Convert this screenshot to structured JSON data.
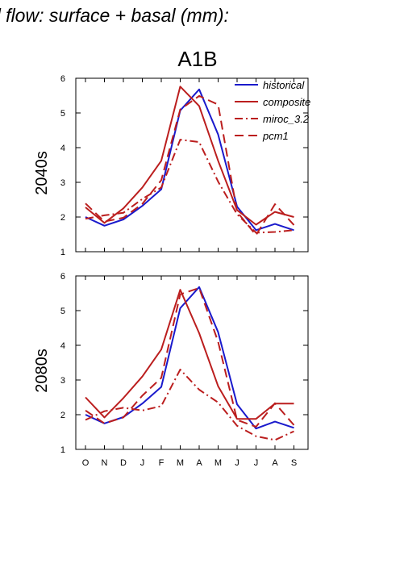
{
  "title": "d flow: surface + basal (mm):",
  "chart_data": {
    "type": "line",
    "scenario": "A1B",
    "categories": [
      "O",
      "N",
      "D",
      "J",
      "F",
      "M",
      "A",
      "M",
      "J",
      "J",
      "A",
      "S"
    ],
    "ylim": [
      1,
      6
    ],
    "yticks": [
      1,
      2,
      3,
      4,
      5,
      6
    ],
    "legend_position": "top-right",
    "legend": [
      {
        "name": "historical",
        "color": "#1a1acc",
        "dash": "solid"
      },
      {
        "name": "composite",
        "color": "#bb1e1e",
        "dash": "solid"
      },
      {
        "name": "miroc_3.2",
        "color": "#bb1e1e",
        "dash": "dashdot"
      },
      {
        "name": "pcm1",
        "color": "#bb1e1e",
        "dash": "dash"
      }
    ],
    "panels": [
      {
        "ylabel": "2040s",
        "show_legend": true,
        "series": [
          {
            "name": "historical",
            "values": [
              2.0,
              1.75,
              1.93,
              2.32,
              2.8,
              5.07,
              5.68,
              4.38,
              2.3,
              1.62,
              1.8,
              1.62
            ]
          },
          {
            "name": "composite",
            "values": [
              2.28,
              1.83,
              2.25,
              2.85,
              3.62,
              5.76,
              5.2,
              3.62,
              2.2,
              1.78,
              2.15,
              2.0
            ]
          },
          {
            "name": "miroc_3.2",
            "values": [
              1.95,
              2.05,
              2.12,
              2.52,
              2.85,
              4.23,
              4.16,
              3.02,
              2.08,
              1.55,
              1.57,
              1.62
            ]
          },
          {
            "name": "pcm1",
            "values": [
              2.39,
              1.87,
              1.98,
              2.38,
              3.06,
              5.1,
              5.49,
              5.24,
              2.15,
              1.48,
              2.37,
              1.77
            ]
          }
        ]
      },
      {
        "ylabel": "2080s",
        "show_legend": false,
        "series": [
          {
            "name": "historical",
            "values": [
              2.0,
              1.75,
              1.93,
              2.32,
              2.8,
              5.07,
              5.68,
              4.38,
              2.3,
              1.6,
              1.8,
              1.62
            ]
          },
          {
            "name": "composite",
            "values": [
              2.5,
              1.92,
              2.48,
              3.1,
              3.88,
              5.6,
              4.35,
              2.82,
              1.88,
              1.88,
              2.32,
              2.32
            ]
          },
          {
            "name": "miroc_3.2",
            "values": [
              1.85,
              2.1,
              2.2,
              2.12,
              2.25,
              3.3,
              2.72,
              2.35,
              1.68,
              1.38,
              1.27,
              1.52
            ]
          },
          {
            "name": "pcm1",
            "values": [
              2.12,
              1.75,
              1.92,
              2.55,
              3.06,
              5.47,
              5.65,
              4.1,
              1.85,
              1.65,
              2.33,
              1.7
            ]
          }
        ]
      }
    ]
  }
}
